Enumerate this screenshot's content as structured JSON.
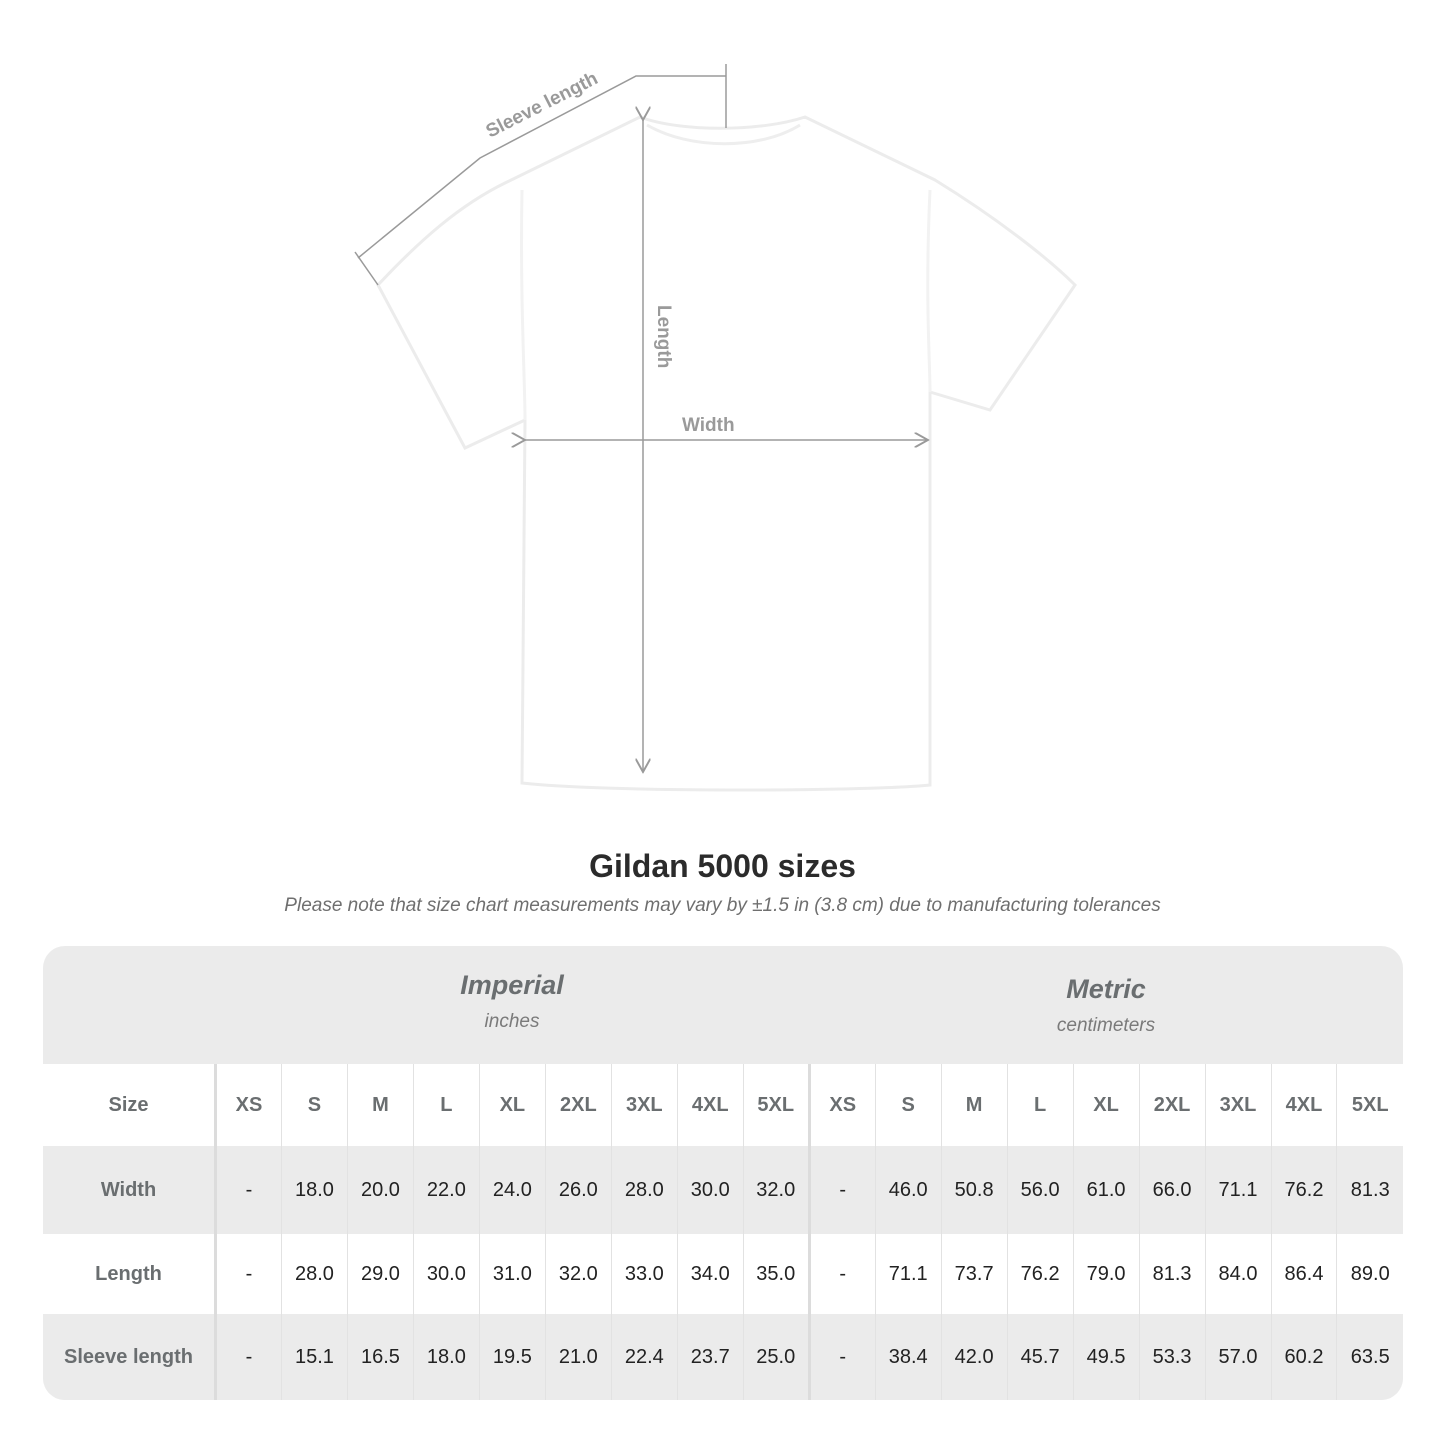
{
  "diagram": {
    "sleeve_label": "Sleeve length",
    "length_label": "Length",
    "width_label": "Width",
    "shirt_color": "#ffffff",
    "measure_line_color": "#9a9a9a"
  },
  "title": "Gildan 5000 sizes",
  "subtitle": "Please note that size chart measurements may vary by ±1.5 in (3.8 cm) due to manufacturing tolerances",
  "systems": [
    {
      "name": "Imperial",
      "unit": "inches"
    },
    {
      "name": "Metric",
      "unit": "centimeters"
    }
  ],
  "table": {
    "size_label": "Size",
    "sizes": [
      "XS",
      "S",
      "M",
      "L",
      "XL",
      "2XL",
      "3XL",
      "4XL",
      "5XL"
    ],
    "rows": [
      {
        "label": "Width",
        "imperial": [
          "-",
          "18.0",
          "20.0",
          "22.0",
          "24.0",
          "26.0",
          "28.0",
          "30.0",
          "32.0"
        ],
        "metric": [
          "-",
          "46.0",
          "50.8",
          "56.0",
          "61.0",
          "66.0",
          "71.1",
          "76.2",
          "81.3"
        ]
      },
      {
        "label": "Length",
        "imperial": [
          "-",
          "28.0",
          "29.0",
          "30.0",
          "31.0",
          "32.0",
          "33.0",
          "34.0",
          "35.0"
        ],
        "metric": [
          "-",
          "71.1",
          "73.7",
          "76.2",
          "79.0",
          "81.3",
          "84.0",
          "86.4",
          "89.0"
        ]
      },
      {
        "label": "Sleeve length",
        "imperial": [
          "-",
          "15.1",
          "16.5",
          "18.0",
          "19.5",
          "21.0",
          "22.4",
          "23.7",
          "25.0"
        ],
        "metric": [
          "-",
          "38.4",
          "42.0",
          "45.7",
          "49.5",
          "53.3",
          "57.0",
          "60.2",
          "63.5"
        ]
      }
    ]
  }
}
